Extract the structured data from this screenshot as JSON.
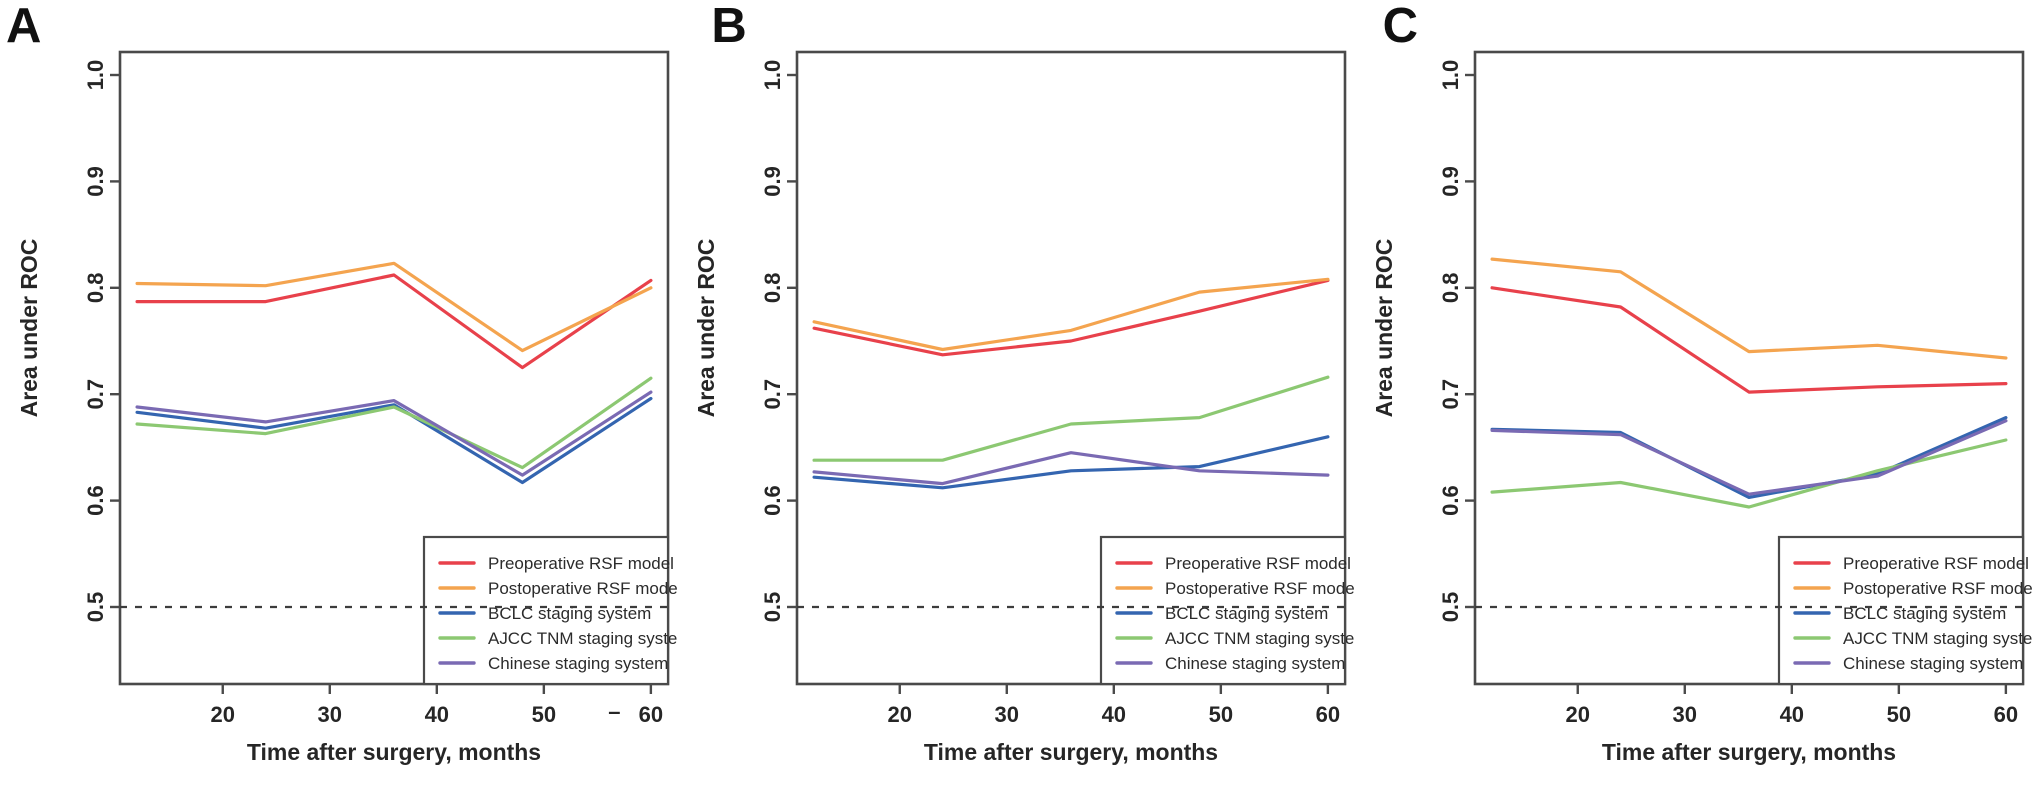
{
  "figure": {
    "background": "#ffffff",
    "axis_color": "#4a4a4a",
    "text_color": "#262626",
    "series_names": [
      "Preoperative RSF model",
      "Postoperative RSF model",
      "BCLC staging system",
      "AJCC TNM staging system",
      "Chinese staging system"
    ],
    "series_colors": {
      "Preoperative RSF model": "#e8414b",
      "Postoperative RSF model": "#f4a44f",
      "BCLC staging system": "#3465b0",
      "AJCC TNM staging system": "#8cc872",
      "Chinese staging system": "#7a6ab3"
    },
    "legend": {
      "position": "bottom-right",
      "entries": [
        "Preoperative RSF model",
        "Postoperative RSF model",
        "BCLC staging system",
        "AJCC TNM staging system",
        "Chinese staging system"
      ]
    },
    "reference_line": {
      "value": 0.5,
      "style": "dashed",
      "color": "#3c3c3c"
    }
  },
  "chart_data": [
    {
      "type": "line",
      "panel_label": "A",
      "x": [
        12,
        24,
        36,
        48,
        60
      ],
      "xlabel": "Time after surgery, months",
      "ylabel": "Area under ROC",
      "xticks": [
        "20",
        "30",
        "40",
        "50",
        "60"
      ],
      "yticks": [
        "0.5",
        "0.6",
        "0.7",
        "0.8",
        "0.9",
        "1.0"
      ],
      "xlim": [
        10.4,
        61.6
      ],
      "ylim": [
        0.43,
        1.02
      ],
      "grid": false,
      "reference_y": 0.5,
      "stray_dash": "–",
      "series": [
        {
          "name": "Preoperative RSF model",
          "color": "#e8414b",
          "values": [
            0.787,
            0.787,
            0.812,
            0.725,
            0.807
          ]
        },
        {
          "name": "Postoperative RSF model",
          "color": "#f4a44f",
          "values": [
            0.804,
            0.802,
            0.823,
            0.741,
            0.8
          ]
        },
        {
          "name": "BCLC staging system",
          "color": "#3465b0",
          "values": [
            0.683,
            0.668,
            0.69,
            0.617,
            0.696
          ]
        },
        {
          "name": "AJCC TNM staging system",
          "color": "#8cc872",
          "values": [
            0.672,
            0.663,
            0.688,
            0.631,
            0.715
          ]
        },
        {
          "name": "Chinese staging system",
          "color": "#7a6ab3",
          "values": [
            0.688,
            0.674,
            0.694,
            0.624,
            0.702
          ]
        }
      ]
    },
    {
      "type": "line",
      "panel_label": "B",
      "x": [
        12,
        24,
        36,
        48,
        60
      ],
      "xlabel": "Time after surgery, months",
      "ylabel": "Area under ROC",
      "xticks": [
        "20",
        "30",
        "40",
        "50",
        "60"
      ],
      "yticks": [
        "0.5",
        "0.6",
        "0.7",
        "0.8",
        "0.9",
        "1.0"
      ],
      "xlim": [
        10.4,
        61.6
      ],
      "ylim": [
        0.43,
        1.02
      ],
      "grid": false,
      "reference_y": 0.5,
      "stray_dash": "",
      "series": [
        {
          "name": "Preoperative RSF model",
          "color": "#e8414b",
          "values": [
            0.762,
            0.737,
            0.75,
            0.778,
            0.807
          ]
        },
        {
          "name": "Postoperative RSF model",
          "color": "#f4a44f",
          "values": [
            0.768,
            0.742,
            0.76,
            0.796,
            0.808
          ]
        },
        {
          "name": "BCLC staging system",
          "color": "#3465b0",
          "values": [
            0.622,
            0.612,
            0.628,
            0.632,
            0.66
          ]
        },
        {
          "name": "AJCC TNM staging system",
          "color": "#8cc872",
          "values": [
            0.638,
            0.638,
            0.672,
            0.678,
            0.716
          ]
        },
        {
          "name": "Chinese staging system",
          "color": "#7a6ab3",
          "values": [
            0.627,
            0.616,
            0.645,
            0.628,
            0.624
          ]
        }
      ]
    },
    {
      "type": "line",
      "panel_label": "C",
      "x": [
        12,
        24,
        36,
        48,
        60
      ],
      "xlabel": "Time after surgery, months",
      "ylabel": "Area under ROC",
      "xticks": [
        "20",
        "30",
        "40",
        "50",
        "60"
      ],
      "yticks": [
        "0.5",
        "0.6",
        "0.7",
        "0.8",
        "0.9",
        "1.0"
      ],
      "xlim": [
        10.4,
        61.6
      ],
      "ylim": [
        0.43,
        1.02
      ],
      "grid": false,
      "reference_y": 0.5,
      "stray_dash": "",
      "series": [
        {
          "name": "Preoperative RSF model",
          "color": "#e8414b",
          "values": [
            0.8,
            0.782,
            0.702,
            0.707,
            0.71
          ]
        },
        {
          "name": "Postoperative RSF model",
          "color": "#f4a44f",
          "values": [
            0.827,
            0.815,
            0.74,
            0.746,
            0.734
          ]
        },
        {
          "name": "BCLC staging system",
          "color": "#3465b0",
          "values": [
            0.667,
            0.664,
            0.603,
            0.625,
            0.678
          ]
        },
        {
          "name": "AJCC TNM staging system",
          "color": "#8cc872",
          "values": [
            0.608,
            0.617,
            0.594,
            0.628,
            0.657
          ]
        },
        {
          "name": "Chinese staging system",
          "color": "#7a6ab3",
          "values": [
            0.666,
            0.662,
            0.606,
            0.623,
            0.675
          ]
        }
      ]
    }
  ]
}
